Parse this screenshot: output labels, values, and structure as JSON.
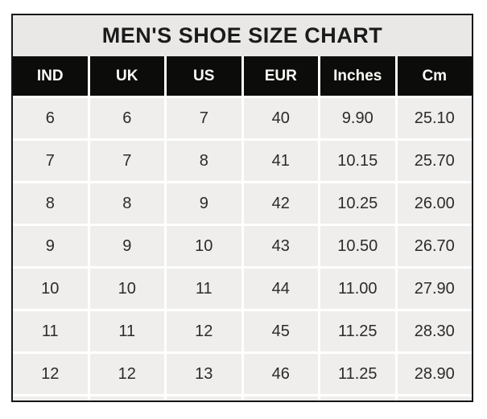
{
  "title": "MEN'S SHOE SIZE CHART",
  "colors": {
    "title_bg": "#e9e8e7",
    "header_bg": "#0c0c0b",
    "header_text": "#fbfbf6",
    "cell_bg": "#efeeec",
    "cell_text": "#2b2b2b",
    "grid_line": "#ffffff",
    "table_border": "#151515",
    "page_bg": "#ffffff"
  },
  "chart_data": {
    "type": "table",
    "title": "MEN'S SHOE SIZE CHART",
    "columns": [
      "IND",
      "UK",
      "US",
      "EUR",
      "Inches",
      "Cm"
    ],
    "rows": [
      [
        "6",
        "6",
        "7",
        "40",
        "9.90",
        "25.10"
      ],
      [
        "7",
        "7",
        "8",
        "41",
        "10.15",
        "25.70"
      ],
      [
        "8",
        "8",
        "9",
        "42",
        "10.25",
        "26.00"
      ],
      [
        "9",
        "9",
        "10",
        "43",
        "10.50",
        "26.70"
      ],
      [
        "10",
        "10",
        "11",
        "44",
        "11.00",
        "27.90"
      ],
      [
        "11",
        "11",
        "12",
        "45",
        "11.25",
        "28.30"
      ],
      [
        "12",
        "12",
        "13",
        "46",
        "11.25",
        "28.90"
      ]
    ]
  }
}
